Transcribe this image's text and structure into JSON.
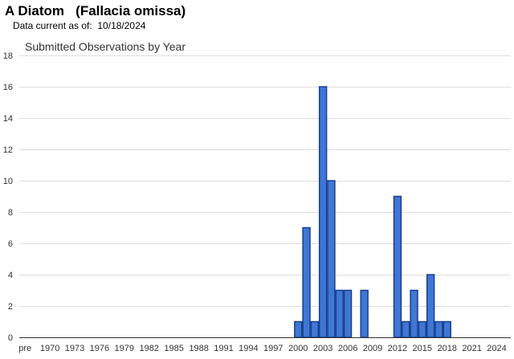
{
  "header": {
    "title": "A Diatom   (Fallacia omissa)",
    "data_current": "Data current as of:  10/18/2024"
  },
  "chart_data": {
    "type": "bar",
    "title": "Submitted Observations by Year",
    "xlabel": "",
    "ylabel": "",
    "ylim": [
      0,
      18
    ],
    "yticks": [
      0,
      2,
      4,
      6,
      8,
      10,
      12,
      14,
      16,
      18
    ],
    "grid": true,
    "legend": "none",
    "bar_color": "#3f77d4",
    "bar_edge_color": "#1a3f8f",
    "categories": [
      "pre",
      "1968",
      "1969",
      "1970",
      "1971",
      "1972",
      "1973",
      "1974",
      "1975",
      "1976",
      "1977",
      "1978",
      "1979",
      "1980",
      "1981",
      "1982",
      "1983",
      "1984",
      "1985",
      "1986",
      "1987",
      "1988",
      "1989",
      "1990",
      "1991",
      "1992",
      "1993",
      "1994",
      "1995",
      "1996",
      "1997",
      "1998",
      "1999",
      "2000",
      "2001",
      "2002",
      "2003",
      "2004",
      "2005",
      "2006",
      "2007",
      "2008",
      "2009",
      "2010",
      "2011",
      "2012",
      "2013",
      "2014",
      "2015",
      "2016",
      "2017",
      "2018",
      "2019",
      "2020",
      "2021",
      "2022",
      "2023",
      "2024",
      "2025"
    ],
    "xtick_labels": [
      "pre",
      "1970",
      "1973",
      "1976",
      "1979",
      "1982",
      "1985",
      "1988",
      "1991",
      "1994",
      "1997",
      "2000",
      "2003",
      "2006",
      "2009",
      "2012",
      "2015",
      "2018",
      "2021",
      "2024"
    ],
    "values": [
      0,
      0,
      0,
      0,
      0,
      0,
      0,
      0,
      0,
      0,
      0,
      0,
      0,
      0,
      0,
      0,
      0,
      0,
      0,
      0,
      0,
      0,
      0,
      0,
      0,
      0,
      0,
      0,
      0,
      0,
      0,
      0,
      0,
      1,
      7,
      1,
      16,
      10,
      3,
      3,
      0,
      3,
      0,
      0,
      0,
      9,
      1,
      3,
      1,
      4,
      1,
      1,
      0,
      0,
      0,
      0,
      0,
      0,
      0
    ]
  }
}
